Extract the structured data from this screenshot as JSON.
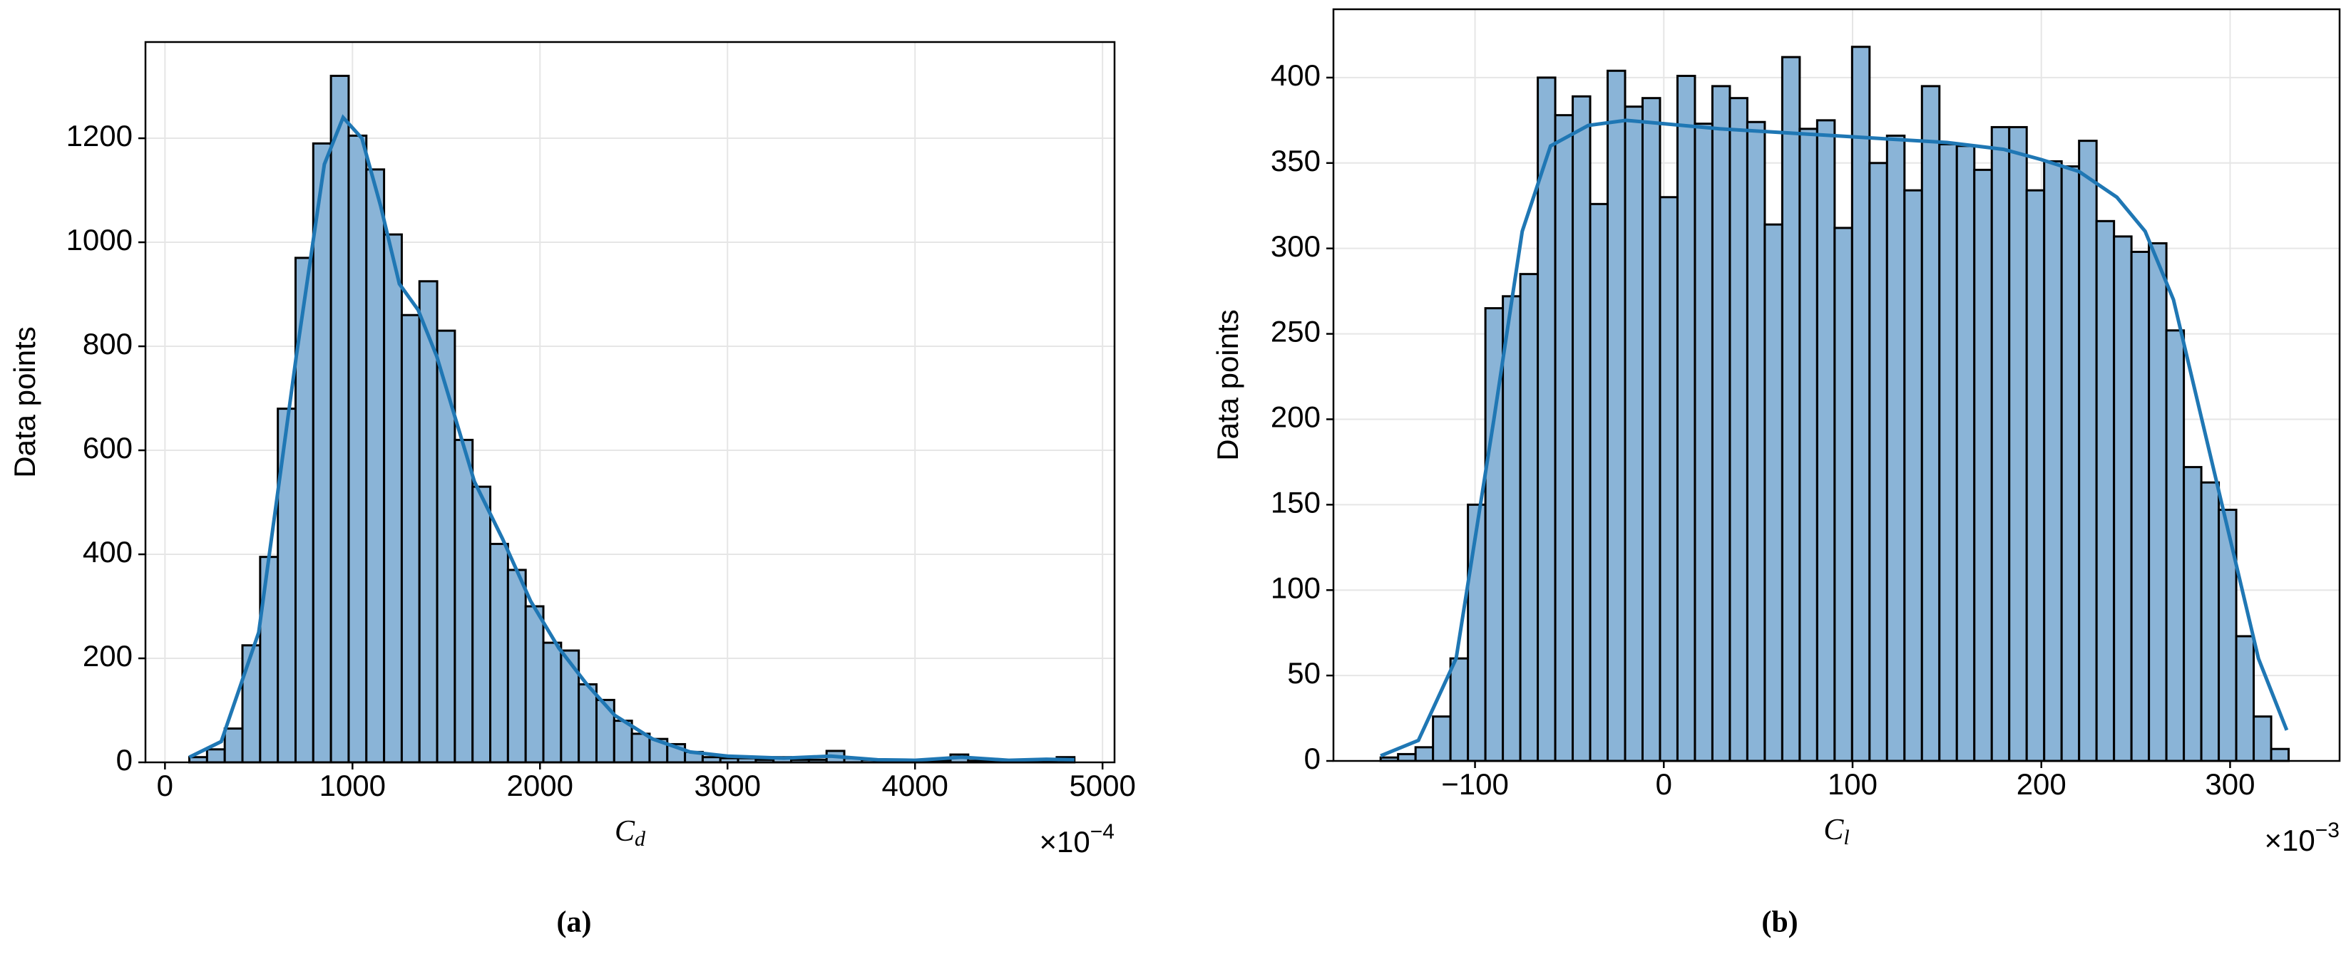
{
  "chart_data": [
    {
      "type": "histogram",
      "caption": "(a)",
      "ylabel": "Data points",
      "xlabel": "C",
      "xlabel_subscript": "d",
      "offset_label": "×10",
      "offset_exponent": "−4",
      "bins": [
        130,
        224.4,
        318.8,
        413.2,
        507.6,
        602,
        696.4,
        790.8,
        885.2,
        979.6,
        1074,
        1168.4,
        1262.8,
        1357.2,
        1451.6,
        1546,
        1640.4,
        1734.8,
        1829.2,
        1923.6,
        2018,
        2112.4,
        2206.8,
        2301.2,
        2395.6,
        2490,
        2584.4,
        2678.8,
        2773.2,
        2867.6,
        2962,
        3056.4,
        3150.8,
        3245.2,
        3339.6,
        3434,
        3528.4,
        3622.8,
        3717.2,
        3811.6,
        3906,
        4000.4,
        4094.8,
        4189.2,
        4283.6,
        4378,
        4472.4,
        4566.8,
        4661.2,
        4755.6,
        4850
      ],
      "values": [
        10,
        25,
        65,
        225,
        395,
        680,
        970,
        1190,
        1320,
        1205,
        1140,
        1015,
        860,
        925,
        830,
        620,
        530,
        420,
        370,
        300,
        230,
        215,
        150,
        120,
        80,
        55,
        45,
        35,
        20,
        10,
        8,
        8,
        5,
        10,
        5,
        5,
        22,
        8,
        5,
        3,
        3,
        3,
        3,
        15,
        3,
        3,
        2,
        3,
        3,
        10
      ],
      "color": "#8ab4d7",
      "edgecolor": "#000000",
      "kde": {
        "color": "#1f77b4",
        "x": [
          130,
          300,
          500,
          700,
          850,
          950,
          1050,
          1150,
          1250,
          1350,
          1450,
          1550,
          1650,
          1800,
          1950,
          2100,
          2250,
          2400,
          2600,
          2800,
          3000,
          3300,
          3550,
          3800,
          4000,
          4250,
          4500,
          4700,
          4850
        ],
        "values": [
          10,
          40,
          250,
          780,
          1150,
          1240,
          1200,
          1070,
          920,
          870,
          780,
          660,
          540,
          430,
          310,
          220,
          150,
          90,
          45,
          20,
          12,
          8,
          12,
          5,
          4,
          10,
          4,
          6,
          5
        ]
      },
      "xlim": [
        -104,
        5064
      ],
      "xticks": [
        0,
        1000,
        2000,
        3000,
        4000,
        5000
      ],
      "ylim": [
        0,
        1385
      ],
      "yticks": [
        0,
        200,
        400,
        600,
        800,
        1000,
        1200
      ],
      "grid": true
    },
    {
      "type": "histogram",
      "caption": "(b)",
      "ylabel": "Data points",
      "xlabel": "C",
      "xlabel_subscript": "l",
      "offset_label": "×10",
      "offset_exponent": "−3",
      "bins": [
        -150,
        -140.75,
        -131.5,
        -122.25,
        -113,
        -103.75,
        -94.5,
        -85.25,
        -76,
        -66.75,
        -57.5,
        -48.25,
        -39,
        -29.75,
        -20.5,
        -11.25,
        -2,
        7.25,
        16.5,
        25.75,
        35,
        44.25,
        53.5,
        62.75,
        72,
        81.25,
        90.5,
        99.75,
        109,
        118.25,
        127.5,
        136.75,
        146,
        155.25,
        164.5,
        173.75,
        183,
        192.25,
        201.5,
        210.75,
        220,
        229.25,
        238.5,
        247.75,
        257,
        266.25,
        275.5,
        284.75,
        294,
        303.25,
        312.5,
        321.75,
        331
      ],
      "values": [
        2,
        4,
        8,
        26,
        60,
        150,
        265,
        272,
        285,
        400,
        378,
        389,
        326,
        404,
        383,
        388,
        330,
        401,
        373,
        395,
        388,
        374,
        314,
        412,
        370,
        375,
        312,
        418,
        350,
        366,
        334,
        395,
        361,
        360,
        346,
        371,
        371,
        334,
        351,
        348,
        363,
        316,
        307,
        298,
        303,
        252,
        172,
        163,
        147,
        73,
        26,
        7
      ],
      "color": "#8ab4d7",
      "edgecolor": "#000000",
      "kde": {
        "color": "#1f77b4",
        "x": [
          -150,
          -130,
          -110,
          -90,
          -75,
          -60,
          -40,
          -20,
          0,
          30,
          60,
          90,
          120,
          150,
          180,
          200,
          220,
          240,
          255,
          270,
          285,
          300,
          315,
          330
        ],
        "values": [
          3,
          12,
          60,
          200,
          310,
          360,
          372,
          375,
          373,
          370,
          368,
          366,
          364,
          362,
          358,
          352,
          345,
          330,
          310,
          270,
          200,
          130,
          60,
          18
        ]
      },
      "xlim": [
        -175,
        358
      ],
      "xticks": [
        {
          "value": -100,
          "label": "−100"
        },
        0,
        100,
        200,
        300
      ],
      "ylim": [
        0,
        440
      ],
      "yticks": [
        0,
        50,
        100,
        150,
        200,
        250,
        300,
        350,
        400
      ],
      "grid": true
    }
  ]
}
